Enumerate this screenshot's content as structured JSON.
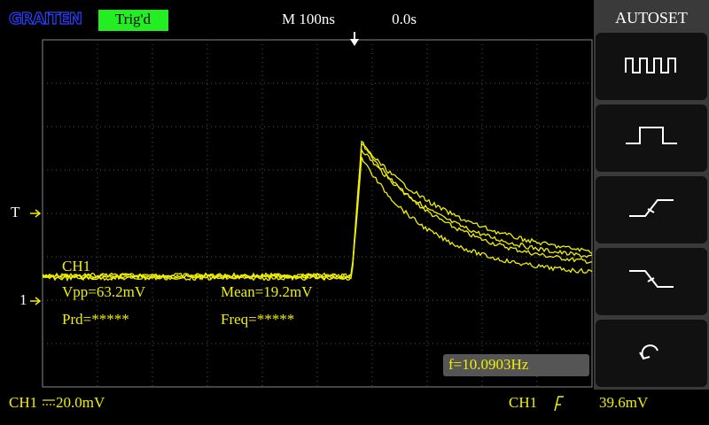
{
  "header": {
    "logo": "GRAITEN",
    "trigger_status": "Trig'd",
    "timebase": "M 100ns",
    "trigger_offset": "0.0s"
  },
  "side_menu": {
    "title": "AUTOSET"
  },
  "markers": {
    "trigger_level": "T",
    "channel": "1"
  },
  "measurements": {
    "channel": "CH1",
    "vpp": "Vpp=63.2mV",
    "mean": "Mean=19.2mV",
    "period": "Prd=*****",
    "frequency": "Freq=*****",
    "counter": "f=10.0903Hz"
  },
  "footer": {
    "channel": "CH1",
    "scale": "20.0mV",
    "trigger_channel": "CH1",
    "trigger_level": "39.6mV"
  }
}
